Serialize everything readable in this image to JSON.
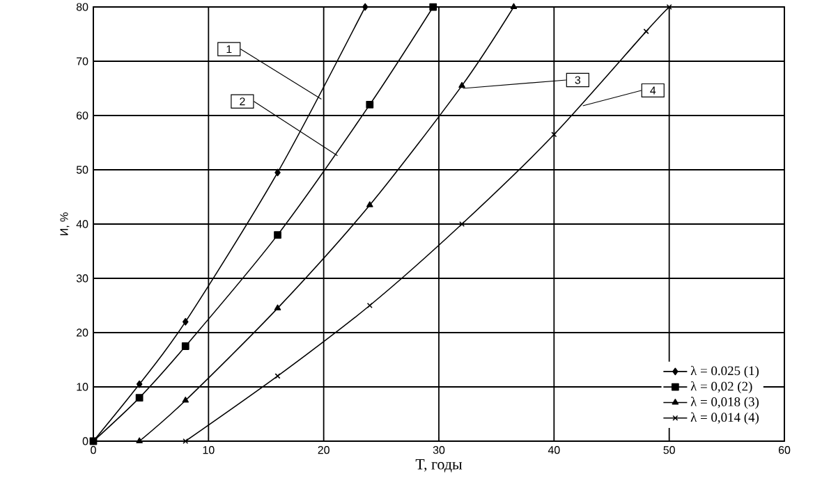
{
  "chart_data": {
    "type": "line",
    "xlabel": "T, годы",
    "ylabel": "И, %",
    "xlim": [
      0,
      60
    ],
    "ylim": [
      0,
      80
    ],
    "xticks": [
      0,
      10,
      20,
      30,
      40,
      50,
      60
    ],
    "yticks": [
      0,
      10,
      20,
      30,
      40,
      50,
      60,
      70,
      80
    ],
    "grid": true,
    "legend": "bottom right",
    "line_style": "solid",
    "series": [
      {
        "name": "λ = 0.025 (1)",
        "color": "#000000",
        "marker": "diamond",
        "x": [
          0,
          4,
          8,
          16,
          23.6
        ],
        "values": [
          0,
          10.5,
          22,
          49.5,
          80
        ]
      },
      {
        "name": "λ = 0,02 (2)",
        "color": "#000000",
        "marker": "square",
        "x": [
          0,
          4,
          8,
          16,
          24,
          29.5
        ],
        "values": [
          0,
          8,
          17.5,
          38,
          62,
          80
        ]
      },
      {
        "name": "λ = 0,018 (3)",
        "color": "#000000",
        "marker": "triangle",
        "x": [
          4,
          8,
          16,
          24,
          32,
          36.5
        ],
        "values": [
          0,
          7.5,
          24.5,
          43.5,
          65.5,
          80
        ]
      },
      {
        "name": "λ = 0,014 (4)",
        "color": "#000000",
        "marker": "cross",
        "x": [
          8,
          16,
          24,
          32,
          40,
          48,
          50
        ],
        "values": [
          0,
          12,
          25,
          40,
          56.5,
          75.5,
          80
        ]
      }
    ],
    "annotations": [
      {
        "text": "1",
        "x": 19.8,
        "y": 63
      },
      {
        "text": "2",
        "x": 21.2,
        "y": 52.6
      },
      {
        "text": "3",
        "x": 32.1,
        "y": 65
      },
      {
        "text": "4",
        "x": 42.5,
        "y": 61.8
      }
    ]
  }
}
